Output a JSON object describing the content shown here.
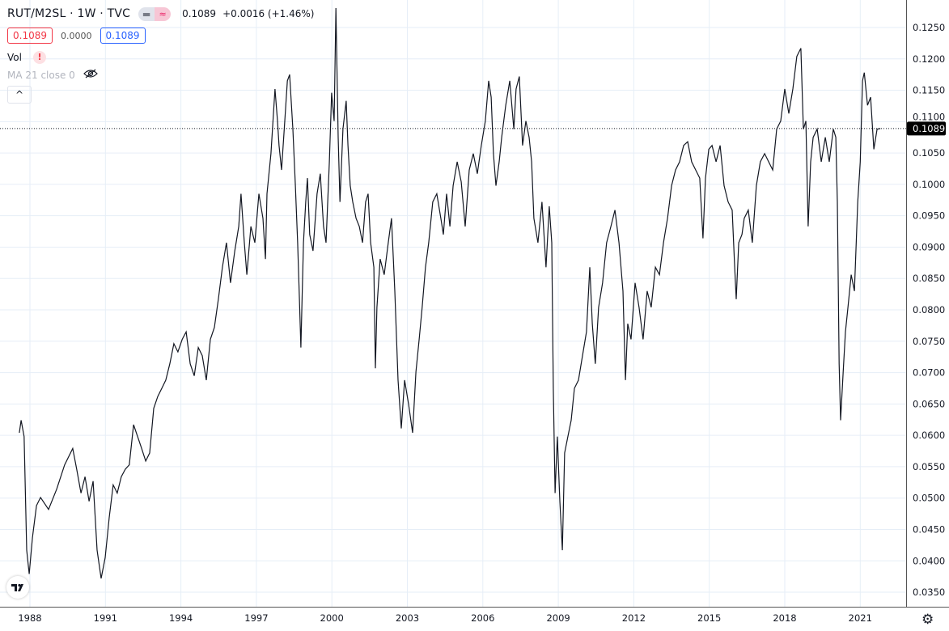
{
  "header": {
    "title": "RUT/M2SL · 1W · TVC",
    "last": "0.1089",
    "change": "+0.0016 (+1.46%)",
    "bid": "0.1089",
    "spread": "0.0000",
    "ask": "0.1089",
    "indicators": [
      {
        "label": "Vol",
        "status_icon": "warning-icon"
      },
      {
        "label": "MA 21 close 0",
        "status_icon": "eye-hidden-icon"
      }
    ],
    "collapse_label": "^"
  },
  "colors": {
    "line": "#131722",
    "grid": "#e6eef7",
    "bid": "#f23645",
    "ask": "#2962ff",
    "price_label_bg": "#000000"
  },
  "chart_data": {
    "type": "line",
    "title": "RUT/M2SL",
    "interval": "1W",
    "grid": true,
    "ylim": [
      0.0335,
      0.128
    ],
    "xlim": [
      1987.55,
      2021.85
    ],
    "y_ticks": [
      "0.1250",
      "0.1200",
      "0.1150",
      "0.1100",
      "0.1050",
      "0.1000",
      "0.0950",
      "0.0900",
      "0.0850",
      "0.0800",
      "0.0750",
      "0.0700",
      "0.0650",
      "0.0600",
      "0.0550",
      "0.0500",
      "0.0450",
      "0.0400",
      "0.0350"
    ],
    "x_ticks": [
      "1988",
      "1991",
      "1994",
      "1997",
      "2000",
      "2003",
      "2006",
      "2009",
      "2012",
      "2015",
      "2018",
      "2021"
    ],
    "last_value": "0.1089",
    "points": [
      [
        1987.58,
        0.0604
      ],
      [
        1987.65,
        0.0624
      ],
      [
        1987.77,
        0.0598
      ],
      [
        1987.87,
        0.0417
      ],
      [
        1987.97,
        0.0379
      ],
      [
        1988.1,
        0.0437
      ],
      [
        1988.26,
        0.0488
      ],
      [
        1988.42,
        0.0501
      ],
      [
        1988.74,
        0.0482
      ],
      [
        1989.06,
        0.0514
      ],
      [
        1989.38,
        0.0553
      ],
      [
        1989.7,
        0.0579
      ],
      [
        1989.86,
        0.0546
      ],
      [
        1990.03,
        0.0508
      ],
      [
        1990.19,
        0.0534
      ],
      [
        1990.35,
        0.0495
      ],
      [
        1990.51,
        0.0527
      ],
      [
        1990.67,
        0.0417
      ],
      [
        1990.83,
        0.0372
      ],
      [
        1990.99,
        0.0405
      ],
      [
        1991.15,
        0.0469
      ],
      [
        1991.31,
        0.0521
      ],
      [
        1991.47,
        0.0508
      ],
      [
        1991.63,
        0.0534
      ],
      [
        1991.79,
        0.0546
      ],
      [
        1991.95,
        0.0553
      ],
      [
        1992.12,
        0.0617
      ],
      [
        1992.28,
        0.0598
      ],
      [
        1992.44,
        0.0579
      ],
      [
        1992.6,
        0.0559
      ],
      [
        1992.76,
        0.0572
      ],
      [
        1992.92,
        0.0643
      ],
      [
        1993.08,
        0.0662
      ],
      [
        1993.24,
        0.0675
      ],
      [
        1993.4,
        0.0688
      ],
      [
        1993.56,
        0.0714
      ],
      [
        1993.72,
        0.0746
      ],
      [
        1993.88,
        0.0733
      ],
      [
        1994.05,
        0.0753
      ],
      [
        1994.21,
        0.0765
      ],
      [
        1994.37,
        0.0714
      ],
      [
        1994.53,
        0.0695
      ],
      [
        1994.69,
        0.074
      ],
      [
        1994.85,
        0.0727
      ],
      [
        1995.01,
        0.0688
      ],
      [
        1995.17,
        0.0753
      ],
      [
        1995.33,
        0.0772
      ],
      [
        1995.49,
        0.0817
      ],
      [
        1995.65,
        0.0868
      ],
      [
        1995.81,
        0.0907
      ],
      [
        1995.97,
        0.0843
      ],
      [
        1996.14,
        0.0894
      ],
      [
        1996.3,
        0.0933
      ],
      [
        1996.39,
        0.0985
      ],
      [
        1996.52,
        0.0907
      ],
      [
        1996.62,
        0.0856
      ],
      [
        1996.78,
        0.0933
      ],
      [
        1996.94,
        0.0907
      ],
      [
        1997.1,
        0.0985
      ],
      [
        1997.26,
        0.0946
      ],
      [
        1997.36,
        0.0881
      ],
      [
        1997.42,
        0.0985
      ],
      [
        1997.58,
        0.1049
      ],
      [
        1997.74,
        0.1152
      ],
      [
        1997.84,
        0.1101
      ],
      [
        1997.9,
        0.1062
      ],
      [
        1998.0,
        0.1023
      ],
      [
        1998.13,
        0.1101
      ],
      [
        1998.23,
        0.1165
      ],
      [
        1998.32,
        0.1175
      ],
      [
        1998.45,
        0.1088
      ],
      [
        1998.55,
        0.0998
      ],
      [
        1998.64,
        0.0907
      ],
      [
        1998.71,
        0.0817
      ],
      [
        1998.77,
        0.074
      ],
      [
        1998.87,
        0.0907
      ],
      [
        1998.96,
        0.0972
      ],
      [
        1999.03,
        0.101
      ],
      [
        1999.12,
        0.092
      ],
      [
        1999.25,
        0.0894
      ],
      [
        1999.41,
        0.0985
      ],
      [
        1999.54,
        0.1017
      ],
      [
        1999.67,
        0.0933
      ],
      [
        1999.77,
        0.0907
      ],
      [
        1999.9,
        0.1036
      ],
      [
        1999.99,
        0.1146
      ],
      [
        2000.09,
        0.1101
      ],
      [
        2000.16,
        0.1281
      ],
      [
        2000.25,
        0.1075
      ],
      [
        2000.32,
        0.0972
      ],
      [
        2000.44,
        0.1088
      ],
      [
        2000.57,
        0.1133
      ],
      [
        2000.64,
        0.1062
      ],
      [
        2000.73,
        0.0998
      ],
      [
        2000.83,
        0.0972
      ],
      [
        2000.96,
        0.0946
      ],
      [
        2001.09,
        0.0933
      ],
      [
        2001.22,
        0.0907
      ],
      [
        2001.34,
        0.0972
      ],
      [
        2001.44,
        0.0985
      ],
      [
        2001.54,
        0.0907
      ],
      [
        2001.67,
        0.0868
      ],
      [
        2001.73,
        0.0707
      ],
      [
        2001.79,
        0.0804
      ],
      [
        2001.92,
        0.0881
      ],
      [
        2002.08,
        0.0856
      ],
      [
        2002.24,
        0.0907
      ],
      [
        2002.37,
        0.0946
      ],
      [
        2002.5,
        0.083
      ],
      [
        2002.63,
        0.0688
      ],
      [
        2002.76,
        0.0611
      ],
      [
        2002.89,
        0.0688
      ],
      [
        2003.05,
        0.0649
      ],
      [
        2003.21,
        0.0604
      ],
      [
        2003.34,
        0.0701
      ],
      [
        2003.47,
        0.0753
      ],
      [
        2003.59,
        0.0804
      ],
      [
        2003.72,
        0.0868
      ],
      [
        2003.85,
        0.0907
      ],
      [
        2004.01,
        0.0972
      ],
      [
        2004.17,
        0.0985
      ],
      [
        2004.33,
        0.0946
      ],
      [
        2004.43,
        0.092
      ],
      [
        2004.56,
        0.0985
      ],
      [
        2004.69,
        0.0933
      ],
      [
        2004.82,
        0.0998
      ],
      [
        2004.98,
        0.1036
      ],
      [
        2005.14,
        0.1004
      ],
      [
        2005.3,
        0.0933
      ],
      [
        2005.46,
        0.1023
      ],
      [
        2005.62,
        0.1049
      ],
      [
        2005.78,
        0.1017
      ],
      [
        2005.94,
        0.1062
      ],
      [
        2006.1,
        0.1101
      ],
      [
        2006.23,
        0.1165
      ],
      [
        2006.33,
        0.1139
      ],
      [
        2006.42,
        0.1049
      ],
      [
        2006.52,
        0.0998
      ],
      [
        2006.65,
        0.1036
      ],
      [
        2006.75,
        0.1075
      ],
      [
        2006.91,
        0.1126
      ],
      [
        2007.07,
        0.1165
      ],
      [
        2007.23,
        0.1088
      ],
      [
        2007.32,
        0.1152
      ],
      [
        2007.45,
        0.1172
      ],
      [
        2007.58,
        0.1062
      ],
      [
        2007.71,
        0.1101
      ],
      [
        2007.84,
        0.1075
      ],
      [
        2007.94,
        0.1036
      ],
      [
        2008.03,
        0.0946
      ],
      [
        2008.19,
        0.0907
      ],
      [
        2008.35,
        0.0972
      ],
      [
        2008.51,
        0.0868
      ],
      [
        2008.64,
        0.0965
      ],
      [
        2008.74,
        0.0907
      ],
      [
        2008.8,
        0.0675
      ],
      [
        2008.87,
        0.0508
      ],
      [
        2008.96,
        0.0598
      ],
      [
        2009.06,
        0.0495
      ],
      [
        2009.16,
        0.0417
      ],
      [
        2009.25,
        0.0572
      ],
      [
        2009.38,
        0.0598
      ],
      [
        2009.51,
        0.0624
      ],
      [
        2009.64,
        0.0675
      ],
      [
        2009.8,
        0.0688
      ],
      [
        2009.96,
        0.0727
      ],
      [
        2010.12,
        0.0765
      ],
      [
        2010.25,
        0.0868
      ],
      [
        2010.35,
        0.0778
      ],
      [
        2010.47,
        0.0714
      ],
      [
        2010.6,
        0.0804
      ],
      [
        2010.76,
        0.0843
      ],
      [
        2010.92,
        0.0907
      ],
      [
        2011.09,
        0.0933
      ],
      [
        2011.25,
        0.0959
      ],
      [
        2011.41,
        0.0907
      ],
      [
        2011.57,
        0.083
      ],
      [
        2011.67,
        0.0688
      ],
      [
        2011.76,
        0.0778
      ],
      [
        2011.89,
        0.0753
      ],
      [
        2012.05,
        0.0843
      ],
      [
        2012.21,
        0.0804
      ],
      [
        2012.37,
        0.0753
      ],
      [
        2012.53,
        0.083
      ],
      [
        2012.69,
        0.0804
      ],
      [
        2012.86,
        0.0868
      ],
      [
        2013.02,
        0.0856
      ],
      [
        2013.18,
        0.0907
      ],
      [
        2013.34,
        0.0946
      ],
      [
        2013.5,
        0.0998
      ],
      [
        2013.66,
        0.1023
      ],
      [
        2013.82,
        0.1036
      ],
      [
        2013.98,
        0.1062
      ],
      [
        2014.14,
        0.1068
      ],
      [
        2014.3,
        0.1036
      ],
      [
        2014.46,
        0.1023
      ],
      [
        2014.62,
        0.101
      ],
      [
        2014.75,
        0.0914
      ],
      [
        2014.85,
        0.101
      ],
      [
        2014.98,
        0.1056
      ],
      [
        2015.11,
        0.1062
      ],
      [
        2015.27,
        0.1036
      ],
      [
        2015.43,
        0.1062
      ],
      [
        2015.59,
        0.0998
      ],
      [
        2015.75,
        0.0972
      ],
      [
        2015.91,
        0.0959
      ],
      [
        2016.01,
        0.0868
      ],
      [
        2016.07,
        0.0817
      ],
      [
        2016.17,
        0.0907
      ],
      [
        2016.3,
        0.092
      ],
      [
        2016.39,
        0.0946
      ],
      [
        2016.55,
        0.0959
      ],
      [
        2016.71,
        0.0907
      ],
      [
        2016.87,
        0.0998
      ],
      [
        2017.03,
        0.1036
      ],
      [
        2017.2,
        0.1049
      ],
      [
        2017.36,
        0.1036
      ],
      [
        2017.52,
        0.1023
      ],
      [
        2017.68,
        0.1088
      ],
      [
        2017.84,
        0.1101
      ],
      [
        2018.0,
        0.1152
      ],
      [
        2018.16,
        0.1113
      ],
      [
        2018.32,
        0.1152
      ],
      [
        2018.48,
        0.1204
      ],
      [
        2018.64,
        0.1217
      ],
      [
        2018.74,
        0.1088
      ],
      [
        2018.84,
        0.1101
      ],
      [
        2018.93,
        0.0933
      ],
      [
        2019.03,
        0.1036
      ],
      [
        2019.13,
        0.1075
      ],
      [
        2019.29,
        0.1088
      ],
      [
        2019.45,
        0.1036
      ],
      [
        2019.61,
        0.1075
      ],
      [
        2019.77,
        0.1036
      ],
      [
        2019.93,
        0.1088
      ],
      [
        2020.03,
        0.1075
      ],
      [
        2020.09,
        0.0972
      ],
      [
        2020.16,
        0.0714
      ],
      [
        2020.22,
        0.0624
      ],
      [
        2020.32,
        0.0701
      ],
      [
        2020.41,
        0.0765
      ],
      [
        2020.51,
        0.0804
      ],
      [
        2020.64,
        0.0856
      ],
      [
        2020.77,
        0.083
      ],
      [
        2020.9,
        0.0972
      ],
      [
        2021.0,
        0.1036
      ],
      [
        2021.09,
        0.1165
      ],
      [
        2021.16,
        0.1178
      ],
      [
        2021.29,
        0.1126
      ],
      [
        2021.41,
        0.1139
      ],
      [
        2021.54,
        0.1056
      ],
      [
        2021.67,
        0.1088
      ],
      [
        2021.8,
        0.1089
      ]
    ]
  }
}
